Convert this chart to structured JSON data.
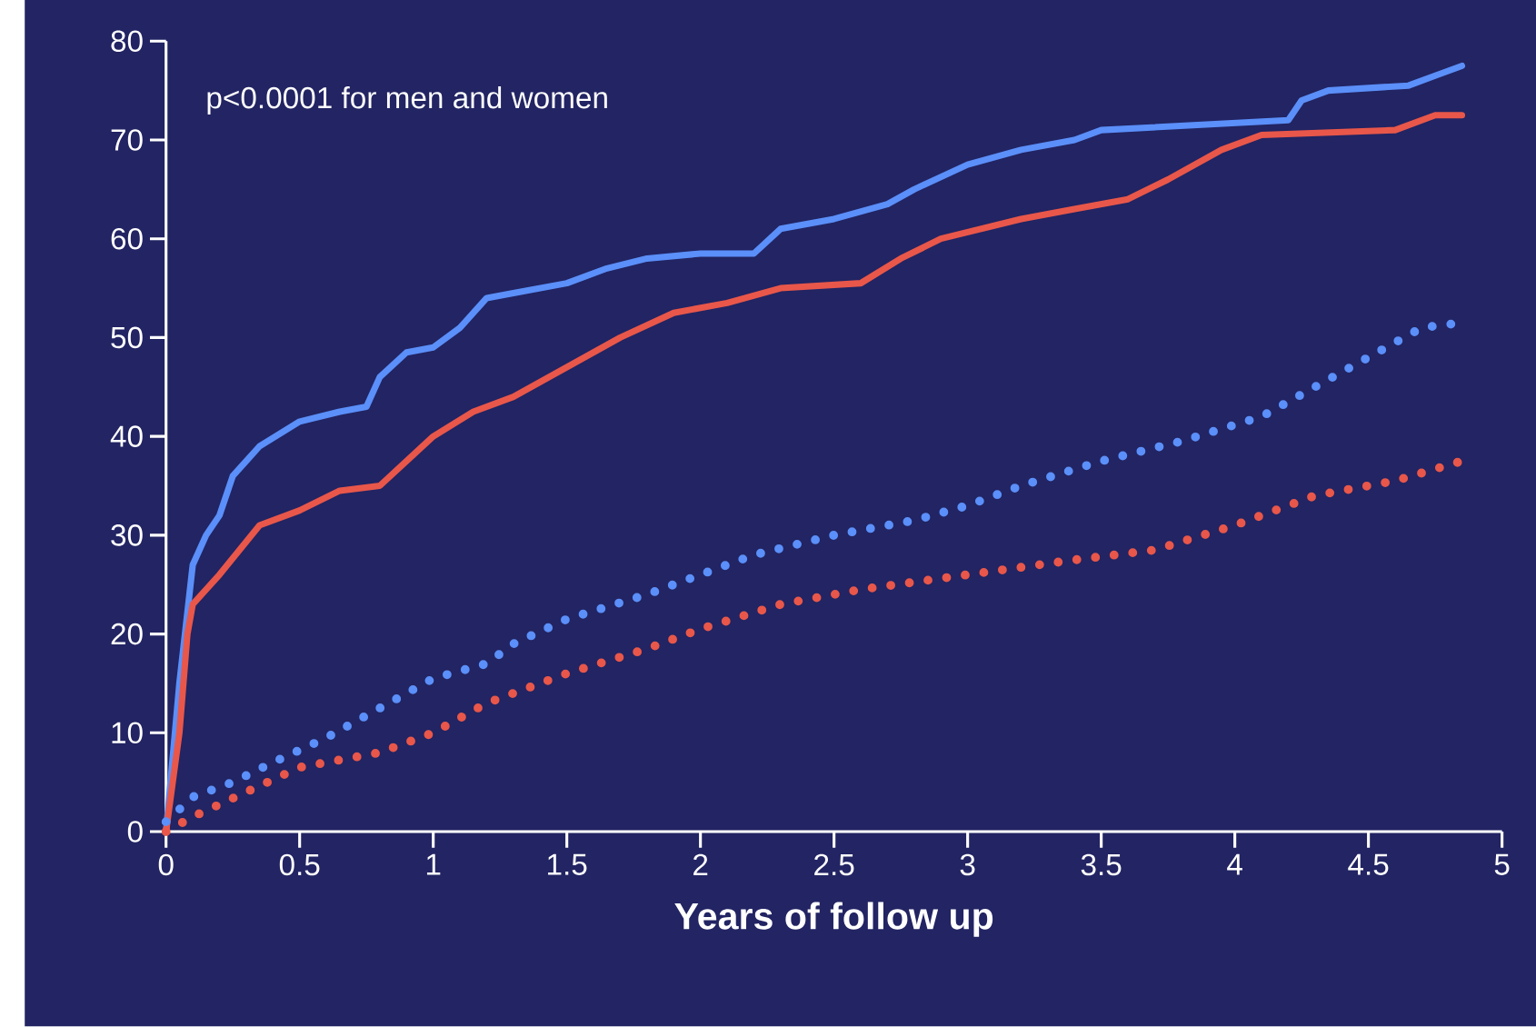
{
  "chart_data": {
    "type": "line",
    "xlabel": "Years of follow up",
    "annotations": [
      "p<0.0001 for men and women"
    ],
    "xlim": [
      0,
      5
    ],
    "ylim": [
      0,
      80
    ],
    "xticks": [
      0,
      0.5,
      1,
      1.5,
      2,
      2.5,
      3,
      3.5,
      4,
      4.5,
      5
    ],
    "yticks": [
      0,
      10,
      20,
      30,
      40,
      50,
      60,
      70,
      80
    ],
    "marker": "none",
    "series": [
      {
        "color": "#5b8ff9",
        "line_style": "solid",
        "x": [
          0,
          0.05,
          0.1,
          0.15,
          0.2,
          0.25,
          0.35,
          0.5,
          0.65,
          0.75,
          0.8,
          0.9,
          1.0,
          1.1,
          1.2,
          1.3,
          1.5,
          1.65,
          1.8,
          2.0,
          2.2,
          2.3,
          2.5,
          2.7,
          2.8,
          3.0,
          3.2,
          3.4,
          3.5,
          4.2,
          4.25,
          4.35,
          4.65,
          4.75,
          4.85
        ],
        "values": [
          0,
          15,
          27,
          30,
          32,
          36,
          39,
          41.5,
          42.5,
          43,
          46,
          48.5,
          49,
          51,
          54,
          54.5,
          55.5,
          57,
          58,
          58.5,
          58.5,
          61,
          62,
          63.5,
          65,
          67.5,
          69,
          70,
          71,
          72,
          74,
          75,
          75.5,
          76.5,
          77.5
        ]
      },
      {
        "color": "#e8574a",
        "line_style": "solid",
        "x": [
          0,
          0.05,
          0.08,
          0.1,
          0.2,
          0.35,
          0.5,
          0.65,
          0.8,
          0.9,
          1.0,
          1.15,
          1.3,
          1.5,
          1.7,
          1.9,
          2.1,
          2.3,
          2.6,
          2.75,
          2.9,
          3.2,
          3.4,
          3.6,
          3.75,
          3.95,
          4.1,
          4.6,
          4.75,
          4.85
        ],
        "values": [
          0,
          10,
          20,
          23,
          26,
          31,
          32.5,
          34.5,
          35,
          37.5,
          40,
          42.5,
          44,
          47,
          50,
          52.5,
          53.5,
          55,
          55.5,
          58,
          60,
          62,
          63,
          64,
          66,
          69,
          70.5,
          71,
          72.5,
          72.5
        ]
      },
      {
        "color": "#5b8ff9",
        "line_style": "dotted",
        "x": [
          0,
          0.1,
          0.25,
          0.4,
          0.6,
          0.8,
          1.0,
          1.2,
          1.3,
          1.5,
          1.8,
          2.0,
          2.2,
          2.5,
          2.8,
          3.0,
          3.2,
          3.5,
          3.8,
          4.1,
          4.3,
          4.5,
          4.7,
          4.85
        ],
        "values": [
          1,
          3.5,
          5,
          7,
          9.5,
          12.5,
          15.5,
          17,
          19,
          21.5,
          24,
          26,
          28,
          30,
          31.5,
          33,
          35,
          37.5,
          39.5,
          42,
          45,
          48,
          51,
          51.5
        ]
      },
      {
        "color": "#e8574a",
        "line_style": "dotted",
        "x": [
          0,
          0.1,
          0.3,
          0.5,
          0.8,
          1.0,
          1.2,
          1.5,
          1.8,
          2.0,
          2.3,
          2.6,
          3.0,
          3.4,
          3.7,
          4.0,
          4.3,
          4.6,
          4.85
        ],
        "values": [
          0,
          1.5,
          4,
          6.5,
          8,
          10,
          13,
          16,
          18.5,
          20.5,
          23,
          24.5,
          26,
          27.5,
          28.5,
          31,
          34,
          35.5,
          37.5
        ]
      }
    ]
  }
}
